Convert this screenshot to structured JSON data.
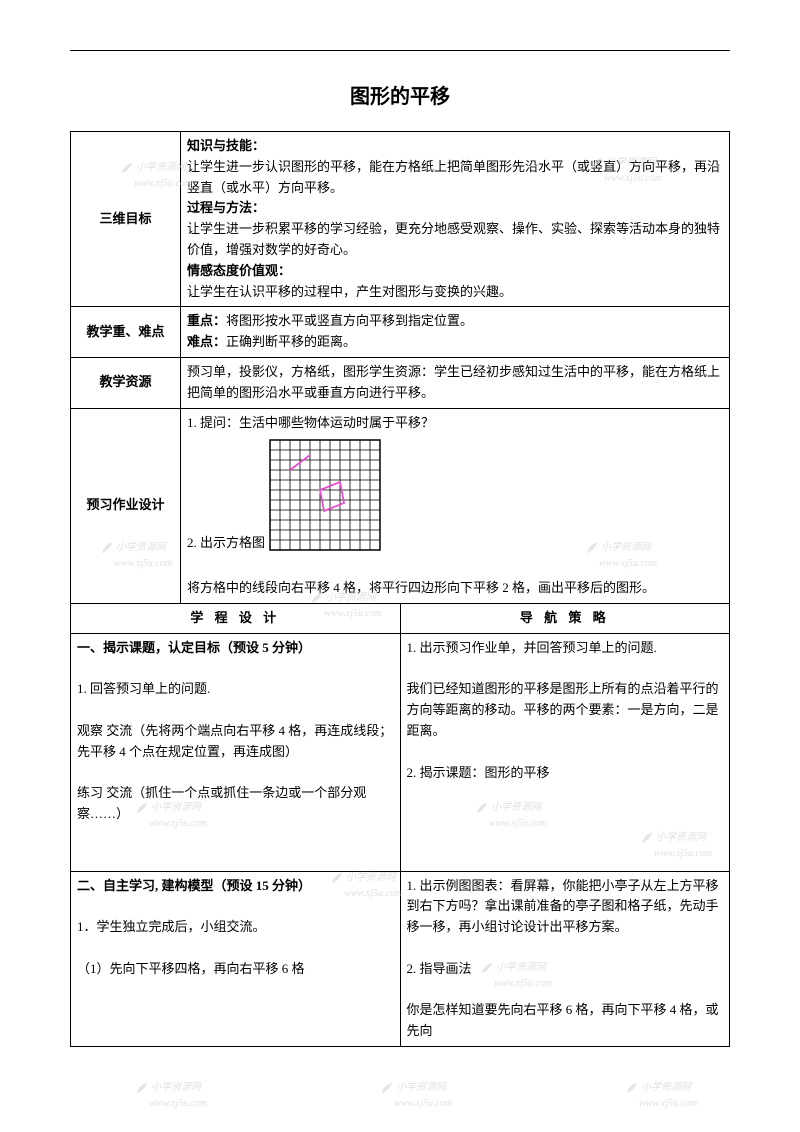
{
  "page": {
    "title": "图形的平移"
  },
  "watermark": {
    "label": "小学资源网",
    "url": "www.xj5u.com"
  },
  "goals": {
    "label": "三维目标",
    "knowledge_h": "知识与技能：",
    "knowledge_b": "让学生进一步认识图形的平移，能在方格纸上把简单图形先沿水平（或竖直）方向平移，再沿竖直（或水平）方向平移。",
    "process_h": "过程与方法：",
    "process_b": "让学生进一步积累平移的学习经验，更充分地感受观察、操作、实验、探索等活动本身的独特价值，增强对数学的好奇心。",
    "attitude_h": "情感态度价值观：",
    "attitude_b": "让学生在认识平移的过程中，产生对图形与变换的兴趣。"
  },
  "focus": {
    "label": "教学重、难点",
    "keypoint_h": "重点：",
    "keypoint_b": "将图形按水平或竖直方向平移到指定位置。",
    "difficulty_h": "难点：",
    "difficulty_b": "正确判断平移的距离。"
  },
  "resources": {
    "label": "教学资源",
    "body": "预习单，投影仪，方格纸，图形学生资源：学生已经初步感知过生活中的平移，能在方格纸上把简单的图形沿水平或垂直方向进行平移。"
  },
  "preview": {
    "label": "预习作业设计",
    "q1": "1. 提问：生活中哪些物体运动时属于平移？",
    "q2": "2.  出示方格图",
    "q3": "将方格中的线段向右平移 4 格，将平行四边形向下平移 2 格，画出平移后的图形。"
  },
  "design": {
    "left_h": "学 程 设 计",
    "right_h": "导 航 策 略"
  },
  "sec1": {
    "left_h": "一、揭示课题，认定目标（预设 5 分钟）",
    "left_1": "1. 回答预习单上的问题.",
    "left_2": "观察    交流（先将两个端点向右平移 4 格，再连成线段；先平移 4 个点在规定位置，再连成图）",
    "left_3": "练习  交流（抓住一个点或抓住一条边或一个部分观察……）",
    "right_1": "1. 出示预习作业单，并回答预习单上的问题.",
    "right_2": "  我们已经知道图形的平移是图形上所有的点沿着平行的方向等距离的移动。平移的两个要素：一是方向，二是距离。",
    "right_3": "2. 揭示课题：图形的平移"
  },
  "sec2": {
    "left_h": "二、自主学习, 建构模型（预设 15 分钟）",
    "left_1": "1．学生独立完成后，小组交流。",
    "left_2": "（1）先向下平移四格，再向右平移 6 格",
    "right_1": "1. 出示例图图表：看屏幕，你能把小亭子从左上方平移到右下方吗？拿出课前准备的亭子图和格子纸，先动手移一移，再小组讨论设计出平移方案。",
    "right_2": "2. 指导画法",
    "right_3": "你是怎样知道要先向右平移 6 格，再向下平移 4 格，或先向"
  },
  "grid": {
    "cells": 11,
    "cell_size": 10,
    "stroke": "#000000",
    "shape_stroke": "#e84fd0",
    "line_p1": [
      2,
      3
    ],
    "line_p2": [
      4,
      1.5
    ],
    "para": [
      [
        5,
        5
      ],
      [
        7,
        4.2
      ],
      [
        7.4,
        6.3
      ],
      [
        5.4,
        7.1
      ]
    ]
  }
}
